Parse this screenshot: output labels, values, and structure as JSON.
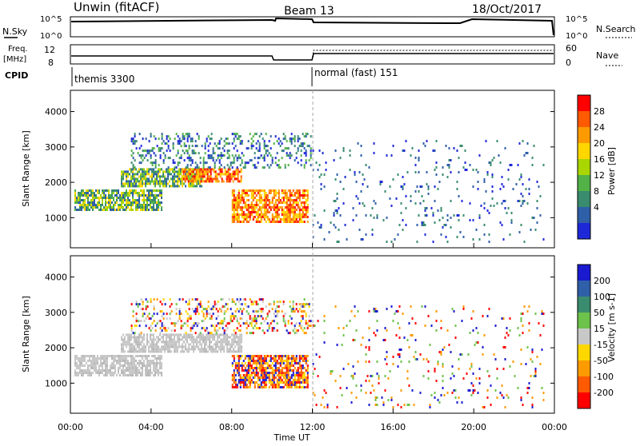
{
  "header": {
    "station": "Unwin (fitACF)",
    "beam": "Beam 13",
    "date": "18/Oct/2017"
  },
  "top_panel": {
    "left_label": "N.Sky",
    "left_ticks": [
      "10^5",
      "10^0"
    ],
    "right_label": "N.Search",
    "right_ticks": [
      "10^5",
      "10^0"
    ]
  },
  "freq_panel": {
    "left_label_1": "Freq.",
    "left_label_2": "[MHz]",
    "left_ticks": [
      "12",
      "8"
    ],
    "right_label": "Nave",
    "right_ticks": [
      "60",
      "0"
    ]
  },
  "cpid": {
    "label": "CPID",
    "segments": [
      "themis 3300",
      "normal (fast) 151"
    ]
  },
  "chart_data": [
    {
      "type": "heatmap",
      "name_key": "power",
      "xlabel": "Time UT",
      "ylabel": "Slant Range [km]",
      "xlim_hours": [
        0,
        24
      ],
      "ylim_km": [
        150,
        4600
      ],
      "yticks": [
        "4000",
        "3000",
        "2000",
        "1000"
      ],
      "colorbar": {
        "label": "Power [dB]",
        "ticks": [
          "28",
          "24",
          "20",
          "16",
          "12",
          "8",
          "4"
        ],
        "colors": [
          "#ff0000",
          "#ff5a00",
          "#ff9a00",
          "#ffd700",
          "#a9d600",
          "#52b248",
          "#3a8c6e",
          "#2f5fa8",
          "#1f28d8"
        ]
      },
      "echo_regions": [
        {
          "t_start": 0.2,
          "t_end": 4.5,
          "r_start": 1200,
          "r_end": 1800,
          "level": "mid"
        },
        {
          "t_start": 2.5,
          "t_end": 6.5,
          "r_start": 1900,
          "r_end": 2400,
          "level": "mid"
        },
        {
          "t_start": 5.5,
          "t_end": 8.5,
          "r_start": 2050,
          "r_end": 2400,
          "level": "high"
        },
        {
          "t_start": 8.0,
          "t_end": 11.8,
          "r_start": 900,
          "r_end": 1800,
          "level": "high"
        },
        {
          "t_start": 3.0,
          "t_end": 11.9,
          "r_start": 2400,
          "r_end": 3400,
          "level": "low"
        },
        {
          "t_start": 12.0,
          "t_end": 23.5,
          "r_start": 300,
          "r_end": 3200,
          "level": "sparse"
        }
      ]
    },
    {
      "type": "heatmap",
      "name_key": "velocity",
      "xlabel": "Time UT",
      "ylabel": "Slant Range [km]",
      "xlim_hours": [
        0,
        24
      ],
      "ylim_km": [
        150,
        4600
      ],
      "yticks": [
        "4000",
        "3000",
        "2000",
        "1000"
      ],
      "colorbar": {
        "label": "Velocity [m s-1]",
        "ticks": [
          "200",
          "100",
          "50",
          "15",
          "-15",
          "-50",
          "-100",
          "-200"
        ],
        "colors": [
          "#1a1ad0",
          "#2f5fa8",
          "#3a8c6e",
          "#6cc24a",
          "#c8c8c8",
          "#ffd700",
          "#ff9a00",
          "#ff5a00",
          "#ff0000"
        ]
      },
      "echo_regions": [
        {
          "t_start": 0.2,
          "t_end": 4.5,
          "r_start": 1200,
          "r_end": 1800,
          "level": "ground"
        },
        {
          "t_start": 2.5,
          "t_end": 8.5,
          "r_start": 1900,
          "r_end": 2400,
          "level": "ground"
        },
        {
          "t_start": 8.0,
          "t_end": 11.8,
          "r_start": 900,
          "r_end": 1800,
          "level": "negative"
        },
        {
          "t_start": 3.0,
          "t_end": 11.9,
          "r_start": 2400,
          "r_end": 3400,
          "level": "mixed"
        },
        {
          "t_start": 12.0,
          "t_end": 23.5,
          "r_start": 300,
          "r_end": 3200,
          "level": "sparse"
        }
      ]
    }
  ],
  "x_axis": {
    "ticks": [
      "00:00",
      "04:00",
      "08:00",
      "12:00",
      "16:00",
      "20:00",
      "00:00"
    ],
    "label": "Time UT"
  }
}
